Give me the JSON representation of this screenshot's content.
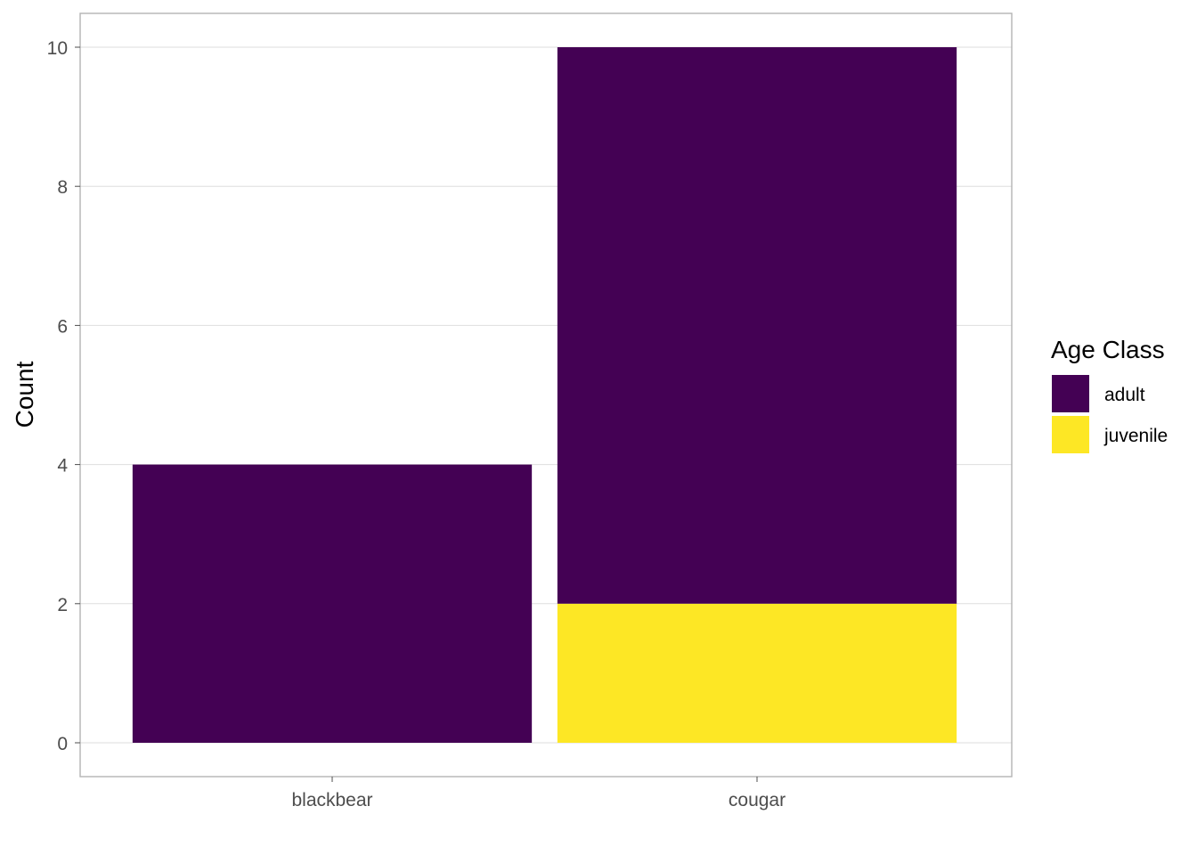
{
  "chart_data": {
    "type": "bar",
    "stacked": true,
    "title": "",
    "xlabel": "",
    "ylabel": "Count",
    "ylim": [
      0,
      10
    ],
    "yticks": [
      0,
      2,
      4,
      6,
      8,
      10
    ],
    "categories": [
      "blackbear",
      "cougar"
    ],
    "series": [
      {
        "name": "juvenile",
        "color": "#FDE725",
        "values": [
          0,
          2
        ]
      },
      {
        "name": "adult",
        "color": "#440154",
        "values": [
          4,
          8
        ]
      }
    ],
    "grid": true,
    "legend": {
      "title": "Age Class",
      "placement": "right",
      "entries": [
        {
          "label": "adult",
          "color": "#440154"
        },
        {
          "label": "juvenile",
          "color": "#FDE725"
        }
      ]
    }
  }
}
